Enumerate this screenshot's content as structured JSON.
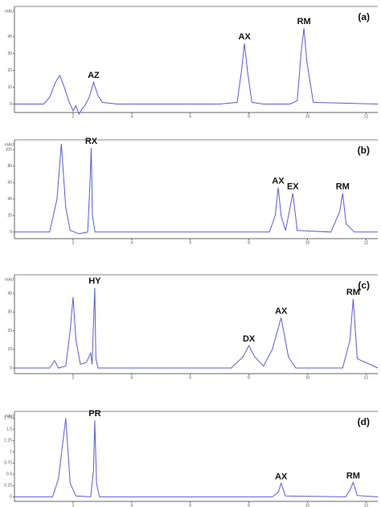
{
  "chart_data": [
    {
      "type": "line",
      "panel_label": "(a)",
      "y_label": "mAU",
      "color": "#5b5bd6",
      "xlim": [
        0,
        12.4
      ],
      "xticks": [
        2,
        4,
        6,
        8,
        10,
        12
      ],
      "ylim": [
        -5,
        58
      ],
      "yticks": [
        0,
        10,
        20,
        30,
        40
      ],
      "x": [
        0,
        1.0,
        1.2,
        1.4,
        1.55,
        1.7,
        1.85,
        2.0,
        2.1,
        2.2,
        2.3,
        2.4,
        2.55,
        2.7,
        2.85,
        3.0,
        3.5,
        7.0,
        7.6,
        7.75,
        7.85,
        7.95,
        8.1,
        8.5,
        9.4,
        9.65,
        9.78,
        9.88,
        9.98,
        10.2,
        12.4
      ],
      "values": [
        0,
        0,
        4,
        13,
        17,
        10,
        2,
        -4,
        -1,
        -6,
        -3,
        -1,
        4,
        13,
        5,
        1,
        0,
        0,
        1,
        20,
        36,
        20,
        1,
        0,
        0,
        2,
        30,
        45,
        25,
        1,
        0
      ],
      "peaks": [
        {
          "label": "AZ",
          "x": 2.7,
          "y": 13
        },
        {
          "label": "AX",
          "x": 7.85,
          "y": 36
        },
        {
          "label": "RM",
          "x": 9.88,
          "y": 45
        }
      ]
    },
    {
      "type": "line",
      "panel_label": "(b)",
      "y_label": "mAU",
      "color": "#5b5bd6",
      "xlim": [
        0,
        12.4
      ],
      "xticks": [
        2,
        4,
        6,
        8,
        10,
        12
      ],
      "ylim": [
        -8,
        112
      ],
      "yticks": [
        0,
        20,
        40,
        60,
        80,
        100
      ],
      "x": [
        0,
        1.2,
        1.45,
        1.6,
        1.75,
        1.9,
        2.2,
        2.5,
        2.58,
        2.62,
        2.66,
        2.75,
        3.5,
        8.7,
        8.9,
        9.0,
        9.1,
        9.25,
        9.38,
        9.5,
        9.65,
        10.8,
        11.1,
        11.2,
        11.32,
        11.6,
        12.4
      ],
      "values": [
        0,
        0,
        40,
        107,
        30,
        2,
        -2,
        0,
        60,
        102,
        20,
        0,
        0,
        0,
        20,
        54,
        20,
        2,
        25,
        47,
        2,
        0,
        25,
        47,
        10,
        0,
        0
      ],
      "peaks": [
        {
          "label": "RX",
          "x": 2.62,
          "y": 102
        },
        {
          "label": "AX",
          "x": 9.0,
          "y": 54
        },
        {
          "label": "EX",
          "x": 9.5,
          "y": 47
        },
        {
          "label": "RM",
          "x": 11.2,
          "y": 47
        }
      ]
    },
    {
      "type": "line",
      "panel_label": "(c)",
      "y_label": "mAU",
      "color": "#5b5bd6",
      "xlim": [
        0,
        12.4
      ],
      "xticks": [
        2,
        4,
        6,
        8,
        10,
        12
      ],
      "ylim": [
        -3,
        50
      ],
      "yticks": [
        0,
        10,
        20,
        30,
        40
      ],
      "x": [
        0,
        1.2,
        1.37,
        1.5,
        1.75,
        1.9,
        2.0,
        2.1,
        2.25,
        2.45,
        2.6,
        2.65,
        2.7,
        2.74,
        2.78,
        2.85,
        3.5,
        7.4,
        7.8,
        8.0,
        8.2,
        8.5,
        8.8,
        9.1,
        9.35,
        9.6,
        11.2,
        11.45,
        11.56,
        11.7,
        12.4
      ],
      "values": [
        0,
        0,
        4,
        0,
        1,
        20,
        38,
        15,
        2,
        3,
        8,
        2,
        25,
        43,
        5,
        0,
        0,
        0,
        6,
        12,
        6,
        1,
        10,
        27,
        6,
        0,
        0,
        15,
        37,
        5,
        0
      ],
      "peaks": [
        {
          "label": "HY",
          "x": 2.74,
          "y": 43
        },
        {
          "label": "DX",
          "x": 8.0,
          "y": 12
        },
        {
          "label": "AX",
          "x": 9.1,
          "y": 27
        },
        {
          "label": "RM",
          "x": 11.56,
          "y": 37
        }
      ]
    },
    {
      "type": "line",
      "panel_label": "(d)",
      "y_label": "mAU",
      "color": "#5b5bd6",
      "xlim": [
        0,
        12.4
      ],
      "xticks": [
        2,
        4,
        6,
        8,
        10,
        12
      ],
      "ylim": [
        -0.1,
        1.9
      ],
      "yticks": [
        0,
        0.25,
        0.5,
        0.75,
        1,
        1.25,
        1.5,
        1.75
      ],
      "x": [
        0,
        1.3,
        1.5,
        1.75,
        1.9,
        2.1,
        2.6,
        2.7,
        2.74,
        2.8,
        2.9,
        8.8,
        9.0,
        9.1,
        9.25,
        11.3,
        11.45,
        11.56,
        11.7,
        12.4
      ],
      "values": [
        0,
        0,
        0.4,
        1.75,
        0.3,
        0.02,
        0,
        0.6,
        1.7,
        0.3,
        0,
        0,
        0.1,
        0.3,
        0.02,
        0,
        0.15,
        0.32,
        0.03,
        0
      ],
      "peaks": [
        {
          "label": "PR",
          "x": 2.74,
          "y": 1.7
        },
        {
          "label": "AX",
          "x": 9.1,
          "y": 0.3
        },
        {
          "label": "RM",
          "x": 11.56,
          "y": 0.32
        }
      ]
    }
  ]
}
